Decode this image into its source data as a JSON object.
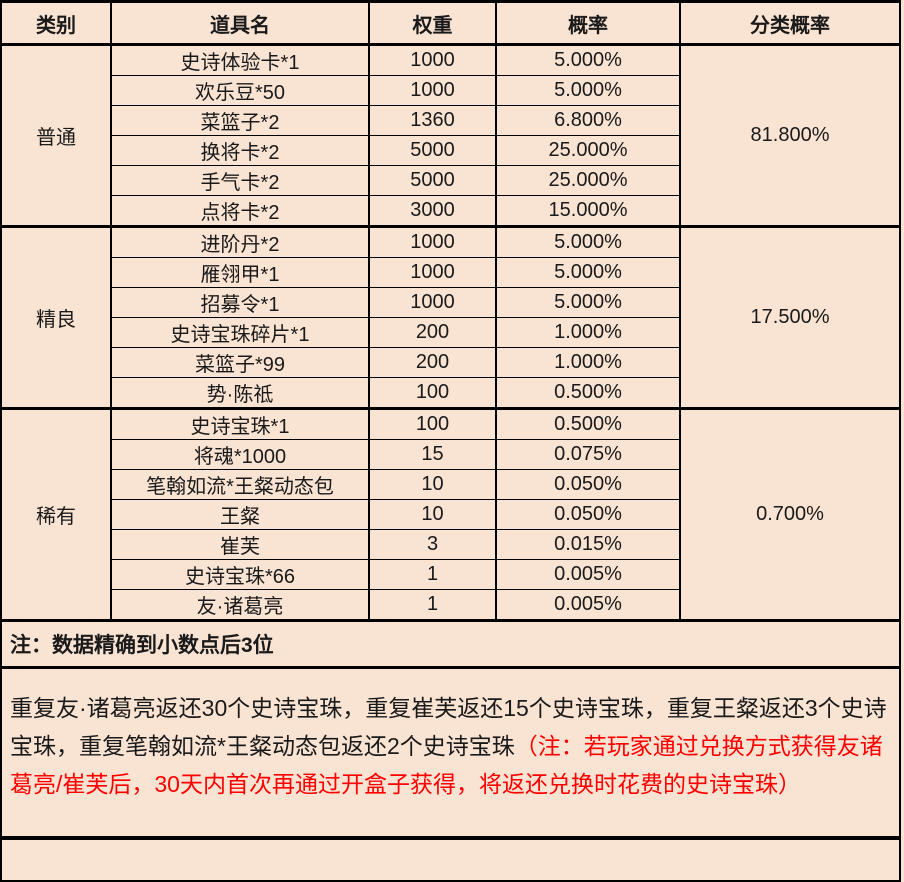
{
  "table": {
    "headers": {
      "category": "类别",
      "item_name": "道具名",
      "weight": "权重",
      "probability": "概率",
      "category_probability": "分类概率"
    },
    "groups": [
      {
        "category": "普通",
        "category_probability": "81.800%",
        "items": [
          {
            "name": "史诗体验卡*1",
            "weight": "1000",
            "probability": "5.000%"
          },
          {
            "name": "欢乐豆*50",
            "weight": "1000",
            "probability": "5.000%"
          },
          {
            "name": "菜篮子*2",
            "weight": "1360",
            "probability": "6.800%"
          },
          {
            "name": "换将卡*2",
            "weight": "5000",
            "probability": "25.000%"
          },
          {
            "name": "手气卡*2",
            "weight": "5000",
            "probability": "25.000%"
          },
          {
            "name": "点将卡*2",
            "weight": "3000",
            "probability": "15.000%"
          }
        ]
      },
      {
        "category": "精良",
        "category_probability": "17.500%",
        "items": [
          {
            "name": "进阶丹*2",
            "weight": "1000",
            "probability": "5.000%"
          },
          {
            "name": "雁翎甲*1",
            "weight": "1000",
            "probability": "5.000%"
          },
          {
            "name": "招募令*1",
            "weight": "1000",
            "probability": "5.000%"
          },
          {
            "name": "史诗宝珠碎片*1",
            "weight": "200",
            "probability": "1.000%"
          },
          {
            "name": "菜篮子*99",
            "weight": "200",
            "probability": "1.000%"
          },
          {
            "name": "势·陈祗",
            "weight": "100",
            "probability": "0.500%"
          }
        ]
      },
      {
        "category": "稀有",
        "category_probability": "0.700%",
        "items": [
          {
            "name": "史诗宝珠*1",
            "weight": "100",
            "probability": "0.500%"
          },
          {
            "name": "将魂*1000",
            "weight": "15",
            "probability": "0.075%"
          },
          {
            "name": "笔翰如流*王粲动态包",
            "weight": "10",
            "probability": "0.050%"
          },
          {
            "name": "王粲",
            "weight": "10",
            "probability": "0.050%"
          },
          {
            "name": "崔芙",
            "weight": "3",
            "probability": "0.015%"
          },
          {
            "name": "史诗宝珠*66",
            "weight": "1",
            "probability": "0.005%"
          },
          {
            "name": "友·诸葛亮",
            "weight": "1",
            "probability": "0.005%"
          }
        ]
      }
    ],
    "note": "注：数据精确到小数点后3位"
  },
  "footer": {
    "text_black": "重复友·诸葛亮返还30个史诗宝珠，重复崔芙返还15个史诗宝珠，重复王粲返还3个史诗宝珠，重复笔翰如流*王粲动态包返还2个史诗宝珠",
    "text_red": "（注：若玩家通过兑换方式获得友诸葛亮/崔芙后，30天内首次再通过开盒子获得，将返还兑换时花费的史诗宝珠）"
  },
  "colors": {
    "background": "#F9E3D3",
    "border": "#000000",
    "text": "#1A1A1A",
    "highlight_red": "#FE0000"
  }
}
